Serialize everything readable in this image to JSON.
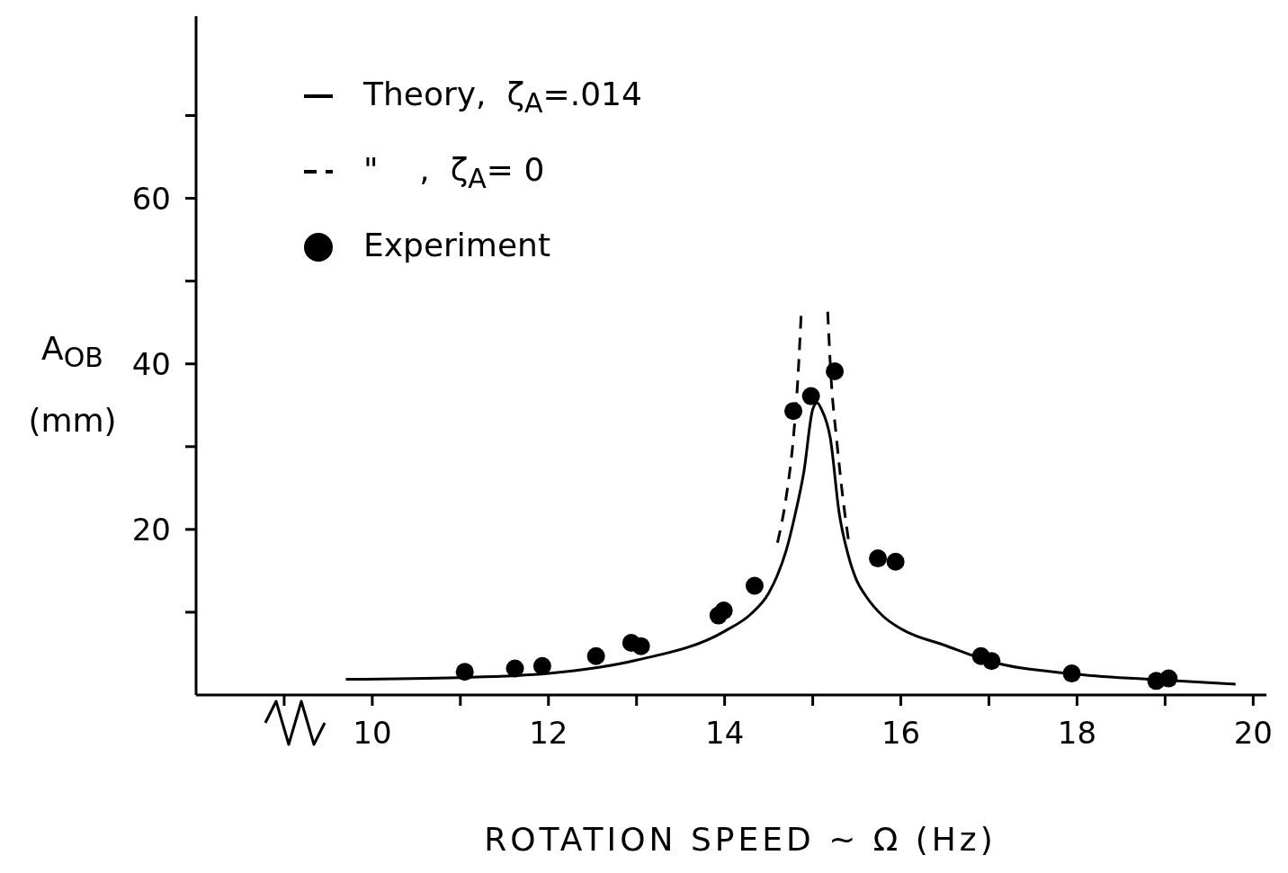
{
  "chart_data": {
    "type": "line",
    "xlabel": "ROTATION SPEED ~ Ω (Hz)",
    "ylabel": "A$_{OB}$ (mm)",
    "xlim": [
      8,
      20.15
    ],
    "xticks": [
      {
        "value": 9,
        "label": null
      },
      10,
      {
        "value": 11,
        "label": null
      },
      12,
      {
        "value": 13,
        "label": null
      },
      14,
      {
        "value": 15,
        "label": null
      },
      16,
      {
        "value": 17,
        "label": null
      },
      18,
      {
        "value": 19,
        "label": null
      },
      20
    ],
    "ylim": [
      0,
      82
    ],
    "yticks": [
      {
        "value": 10,
        "label": null
      },
      20,
      {
        "value": 30,
        "label": null
      },
      40,
      {
        "value": 50,
        "label": null
      },
      60,
      {
        "value": 70,
        "label": null
      }
    ],
    "grid": false,
    "legend": "top left",
    "series": [
      {
        "name": "Theory,  ζ$_{A}$=.014",
        "line_style": "solid",
        "color": "#000000",
        "x": [
          9.7,
          11,
          12,
          13,
          14,
          14.3,
          14.5,
          14.6,
          14.7,
          14.8,
          14.9,
          15,
          15.05,
          15.1,
          15.2,
          15.3,
          15.4,
          15.5,
          15.6,
          15.8,
          16,
          16.5,
          17,
          18,
          19,
          19.8
        ],
        "values": [
          1.9,
          2.1,
          2.6,
          4.2,
          7.7,
          9.8,
          12.3,
          14.5,
          17.5,
          21.8,
          27,
          34.5,
          35.3,
          34.5,
          31,
          22,
          17,
          13.8,
          12,
          9.5,
          8,
          6,
          4.1,
          2.5,
          1.8,
          1.3
        ]
      },
      {
        "name": "\"    ,  ζ$_{A}$= 0",
        "line_style": "dashed",
        "color": "#000000",
        "x": [
          14.6,
          14.7,
          14.78,
          14.83,
          14.87,
          15.02,
          15.17,
          15.21,
          15.27,
          15.34,
          15.41
        ],
        "values": [
          18.4,
          24,
          31,
          38,
          46.3,
          null,
          46.3,
          38,
          31,
          24,
          18.4
        ]
      },
      {
        "name": "Experiment",
        "type": "scatter",
        "marker": "circle",
        "color": "#000000",
        "x": [
          11.05,
          11.62,
          11.93,
          12.54,
          12.94,
          13.05,
          13.93,
          13.99,
          14.34,
          14.78,
          14.98,
          15.25,
          15.74,
          15.94,
          16.91,
          17.03,
          17.94,
          18.9,
          19.04
        ],
        "values": [
          2.8,
          3.2,
          3.5,
          4.7,
          6.3,
          5.9,
          9.6,
          10.2,
          13.2,
          34.3,
          36.1,
          39.1,
          16.5,
          16.1,
          4.7,
          4.1,
          2.6,
          1.7,
          2.0
        ]
      }
    ]
  }
}
